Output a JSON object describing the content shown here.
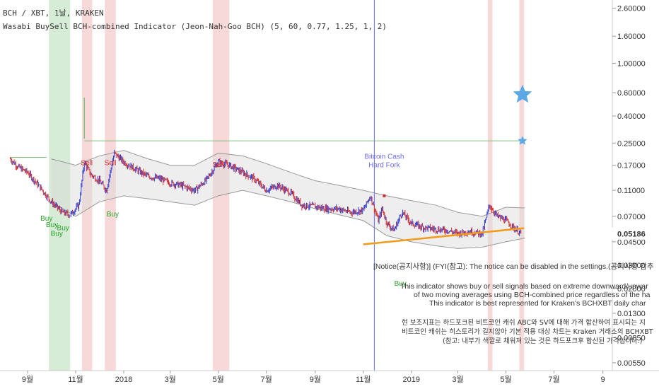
{
  "header": {
    "symbol_line": "BCH / XBT, 1날, KRAKEN",
    "indicator_line": "Wasabi BuySell BCH-combined Indicator (Jeon-Nah-Goo BCH) (5, 60, 0.77, 1.25, 1, 2)"
  },
  "colors": {
    "up_candle": "#2b3bd6",
    "down_candle": "#d62b2b",
    "band_fill": "#d9d9d9",
    "band_line": "#9a9a9a",
    "buy_shade": "#cfe9cf",
    "sell_shade": "#f6d0d0",
    "event_line": "#6b6bf0",
    "trend_line": "#f39a19",
    "star": "#5aa9e6",
    "green_line": "#7fbf7f",
    "buy_text": "#27a327",
    "sell_text": "#d62b2b"
  },
  "chart_data": {
    "type": "line",
    "scale": "log",
    "x_tick_labels": [
      "9월",
      "11월",
      "2018",
      "3월",
      "5월",
      "7월",
      "9월",
      "11월",
      "2019",
      "3월",
      "5월",
      "7월",
      "9"
    ],
    "y_tick_labels": [
      "2.60000",
      "1.60000",
      "1.00000",
      "0.60000",
      "0.40000",
      "0.25000",
      "0.17000",
      "0.11000",
      "0.07000",
      "0.04500",
      "0.03000",
      "0.02000",
      "0.01300",
      "0.00850",
      "0.00550"
    ],
    "y_tick_values": [
      2.6,
      1.6,
      1.0,
      0.6,
      0.4,
      0.25,
      0.17,
      0.11,
      0.07,
      0.045,
      0.03,
      0.02,
      0.013,
      0.0085,
      0.0055
    ],
    "ylim": [
      0.0048,
      3.0
    ],
    "last_price_label": "0.05186",
    "last_price": 0.05186,
    "price_series": [
      {
        "d": "2017-08-10",
        "v": 0.19
      },
      {
        "d": "2017-08-20",
        "v": 0.165
      },
      {
        "d": "2017-09-01",
        "v": 0.15
      },
      {
        "d": "2017-09-15",
        "v": 0.12
      },
      {
        "d": "2017-10-01",
        "v": 0.09
      },
      {
        "d": "2017-10-15",
        "v": 0.075
      },
      {
        "d": "2017-10-25",
        "v": 0.072
      },
      {
        "d": "2017-11-05",
        "v": 0.085
      },
      {
        "d": "2017-11-12",
        "v": 0.18
      },
      {
        "d": "2017-11-20",
        "v": 0.145
      },
      {
        "d": "2017-12-01",
        "v": 0.13
      },
      {
        "d": "2017-12-10",
        "v": 0.11
      },
      {
        "d": "2017-12-20",
        "v": 0.21
      },
      {
        "d": "2018-01-01",
        "v": 0.18
      },
      {
        "d": "2018-01-15",
        "v": 0.16
      },
      {
        "d": "2018-02-01",
        "v": 0.14
      },
      {
        "d": "2018-02-15",
        "v": 0.135
      },
      {
        "d": "2018-03-01",
        "v": 0.125
      },
      {
        "d": "2018-03-15",
        "v": 0.12
      },
      {
        "d": "2018-04-01",
        "v": 0.11
      },
      {
        "d": "2018-04-15",
        "v": 0.13
      },
      {
        "d": "2018-05-01",
        "v": 0.18
      },
      {
        "d": "2018-05-15",
        "v": 0.17
      },
      {
        "d": "2018-06-01",
        "v": 0.15
      },
      {
        "d": "2018-06-15",
        "v": 0.135
      },
      {
        "d": "2018-07-01",
        "v": 0.11
      },
      {
        "d": "2018-07-15",
        "v": 0.12
      },
      {
        "d": "2018-08-01",
        "v": 0.105
      },
      {
        "d": "2018-08-15",
        "v": 0.085
      },
      {
        "d": "2018-09-01",
        "v": 0.083
      },
      {
        "d": "2018-09-15",
        "v": 0.08
      },
      {
        "d": "2018-10-01",
        "v": 0.08
      },
      {
        "d": "2018-10-15",
        "v": 0.075
      },
      {
        "d": "2018-11-01",
        "v": 0.078
      },
      {
        "d": "2018-11-10",
        "v": 0.1
      },
      {
        "d": "2018-11-20",
        "v": 0.065
      },
      {
        "d": "2018-11-25",
        "v": 0.08
      },
      {
        "d": "2018-12-01",
        "v": 0.062
      },
      {
        "d": "2018-12-10",
        "v": 0.055
      },
      {
        "d": "2018-12-20",
        "v": 0.075
      },
      {
        "d": "2019-01-01",
        "v": 0.062
      },
      {
        "d": "2019-01-15",
        "v": 0.058
      },
      {
        "d": "2019-02-01",
        "v": 0.056
      },
      {
        "d": "2019-02-15",
        "v": 0.055
      },
      {
        "d": "2019-03-01",
        "v": 0.052
      },
      {
        "d": "2019-03-15",
        "v": 0.054
      },
      {
        "d": "2019-04-01",
        "v": 0.052
      },
      {
        "d": "2019-04-10",
        "v": 0.085
      },
      {
        "d": "2019-04-20",
        "v": 0.07
      },
      {
        "d": "2019-05-01",
        "v": 0.065
      },
      {
        "d": "2019-05-10",
        "v": 0.058
      },
      {
        "d": "2019-05-20",
        "v": 0.052
      }
    ],
    "band_upper": [
      {
        "d": "2017-10-01",
        "v": 0.19
      },
      {
        "d": "2017-11-01",
        "v": 0.17
      },
      {
        "d": "2017-12-01",
        "v": 0.2
      },
      {
        "d": "2018-01-01",
        "v": 0.22
      },
      {
        "d": "2018-02-01",
        "v": 0.19
      },
      {
        "d": "2018-03-01",
        "v": 0.17
      },
      {
        "d": "2018-04-01",
        "v": 0.17
      },
      {
        "d": "2018-05-01",
        "v": 0.21
      },
      {
        "d": "2018-06-01",
        "v": 0.2
      },
      {
        "d": "2018-07-01",
        "v": 0.175
      },
      {
        "d": "2018-08-01",
        "v": 0.15
      },
      {
        "d": "2018-09-01",
        "v": 0.13
      },
      {
        "d": "2018-10-01",
        "v": 0.12
      },
      {
        "d": "2018-11-01",
        "v": 0.11
      },
      {
        "d": "2018-12-01",
        "v": 0.1
      },
      {
        "d": "2019-01-01",
        "v": 0.092
      },
      {
        "d": "2019-02-01",
        "v": 0.085
      },
      {
        "d": "2019-03-01",
        "v": 0.075
      },
      {
        "d": "2019-04-01",
        "v": 0.07
      },
      {
        "d": "2019-05-01",
        "v": 0.082
      },
      {
        "d": "2019-05-25",
        "v": 0.081
      }
    ],
    "band_lower": [
      {
        "d": "2017-10-01",
        "v": 0.09
      },
      {
        "d": "2017-11-01",
        "v": 0.07
      },
      {
        "d": "2017-12-01",
        "v": 0.09
      },
      {
        "d": "2018-01-01",
        "v": 0.1
      },
      {
        "d": "2018-02-01",
        "v": 0.095
      },
      {
        "d": "2018-03-01",
        "v": 0.09
      },
      {
        "d": "2018-04-01",
        "v": 0.085
      },
      {
        "d": "2018-05-01",
        "v": 0.1
      },
      {
        "d": "2018-06-01",
        "v": 0.11
      },
      {
        "d": "2018-07-01",
        "v": 0.1
      },
      {
        "d": "2018-08-01",
        "v": 0.09
      },
      {
        "d": "2018-09-01",
        "v": 0.08
      },
      {
        "d": "2018-10-01",
        "v": 0.072
      },
      {
        "d": "2018-11-01",
        "v": 0.065
      },
      {
        "d": "2018-12-01",
        "v": 0.05
      },
      {
        "d": "2019-01-01",
        "v": 0.045
      },
      {
        "d": "2019-02-01",
        "v": 0.042
      },
      {
        "d": "2019-03-01",
        "v": 0.04
      },
      {
        "d": "2019-04-01",
        "v": 0.041
      },
      {
        "d": "2019-05-01",
        "v": 0.045
      },
      {
        "d": "2019-05-25",
        "v": 0.048
      }
    ],
    "buy_zones": [
      {
        "from": "2017-09-28",
        "to": "2017-10-25"
      }
    ],
    "sell_zones": [
      {
        "from": "2017-11-09",
        "to": "2017-11-22"
      },
      {
        "from": "2017-12-08",
        "to": "2017-12-22"
      },
      {
        "from": "2018-04-24",
        "to": "2018-05-15"
      },
      {
        "from": "2019-04-08",
        "to": "2019-04-14"
      },
      {
        "from": "2019-05-18",
        "to": "2019-05-24"
      }
    ],
    "spike": {
      "d": "2017-11-12",
      "v": 0.55,
      "base": 0.27
    },
    "green_level": {
      "from": "2017-11-12",
      "to": "2019-05-22",
      "v": 0.26
    },
    "early_level": {
      "from": "2017-08-10",
      "to": "2017-09-25",
      "v": 0.195
    },
    "event": {
      "d": "2018-11-15",
      "label": "Bitcoin Cash Hard Fork"
    },
    "trend_line": {
      "from": {
        "d": "2018-11-01",
        "v": 0.043
      },
      "to": {
        "d": "2019-05-24",
        "v": 0.057
      }
    },
    "stars": [
      {
        "d": "2019-05-22",
        "v": 0.58,
        "size": "large"
      },
      {
        "d": "2019-05-22",
        "v": 0.26,
        "size": "small"
      }
    ],
    "signals": [
      {
        "text": "Buy",
        "d": "2017-09-25",
        "v": 0.065,
        "kind": "buy"
      },
      {
        "text": "Buy",
        "d": "2017-10-02",
        "v": 0.058,
        "kind": "buy"
      },
      {
        "text": "Buy",
        "d": "2017-10-08",
        "v": 0.05,
        "kind": "buy"
      },
      {
        "text": "Buy",
        "d": "2017-10-16",
        "v": 0.055,
        "kind": "buy"
      },
      {
        "text": "Buy",
        "d": "2017-12-18",
        "v": 0.07,
        "kind": "buy"
      },
      {
        "text": "Buy",
        "d": "2018-12-18",
        "v": 0.021,
        "kind": "buy"
      },
      {
        "text": "Sell",
        "d": "2017-11-15",
        "v": 0.17,
        "kind": "sell"
      },
      {
        "text": "Sell",
        "d": "2017-12-15",
        "v": 0.17,
        "kind": "sell"
      },
      {
        "text": "Sell",
        "d": "2018-05-01",
        "v": 0.165,
        "kind": "sell"
      }
    ]
  },
  "notice": {
    "line1": "[Notice(공지사항)]  (FYI(참고): The notice can be disabled in the settings.(공지사항 감추",
    "line2": "This indicator shows buy or sell signals based on extreme downward/upwar",
    "line3": "of two moving averages using BCH-combined price regardless of the ha",
    "line4": "This indicator is best represented for Kraken's BCHXBT daily char",
    "line5": "현 보조지표는 하드포크된 비트코인 캐쉬 ABC와 SV에 대해 가격 합산하여 표시되는 지",
    "line6": "비트코인 캐쉬는 히스토리가 길지않아 기본 적용 대상 차트는 Kraken 거래소의 BCHXBT",
    "line7": "(참고: 내부가 색깔로 채워져 있는 것은 하드포크후 합산된 가격입니다.)"
  }
}
